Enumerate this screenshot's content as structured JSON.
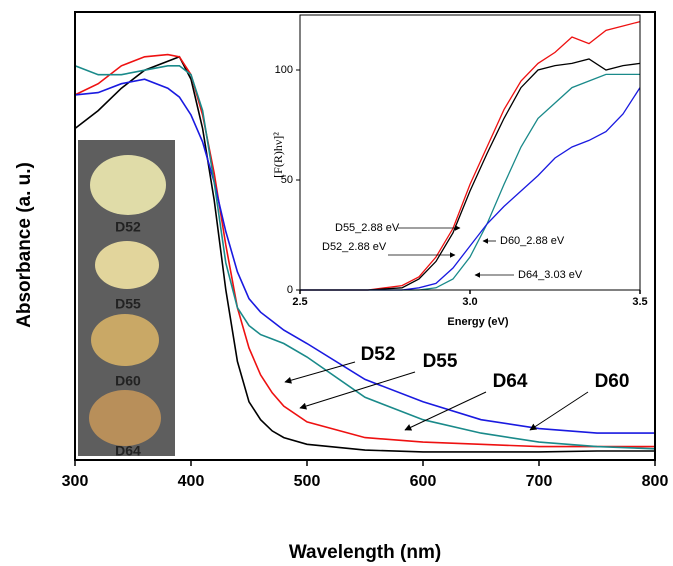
{
  "chart_data": [
    {
      "type": "line",
      "xlabel": "Wavelength (nm)",
      "ylabel": "Absorbance (a. u.)",
      "x": [
        300,
        320,
        340,
        360,
        380,
        390,
        400,
        410,
        420,
        430,
        440,
        450,
        460,
        470,
        480,
        500,
        550,
        600,
        650,
        700,
        750,
        800
      ],
      "xlim": [
        300,
        800
      ],
      "xticks": [
        300,
        400,
        500,
        600,
        700,
        800
      ],
      "ylim": [
        0,
        1
      ],
      "series": [
        {
          "name": "D52",
          "color": "#000000",
          "values": [
            0.74,
            0.78,
            0.83,
            0.87,
            0.89,
            0.9,
            0.85,
            0.74,
            0.58,
            0.38,
            0.22,
            0.13,
            0.09,
            0.065,
            0.05,
            0.035,
            0.022,
            0.018,
            0.018,
            0.018,
            0.02,
            0.02
          ]
        },
        {
          "name": "D55",
          "color": "#ee1111",
          "values": [
            0.815,
            0.84,
            0.88,
            0.9,
            0.905,
            0.9,
            0.86,
            0.77,
            0.64,
            0.48,
            0.34,
            0.25,
            0.19,
            0.15,
            0.12,
            0.085,
            0.05,
            0.04,
            0.035,
            0.03,
            0.03,
            0.03
          ]
        },
        {
          "name": "D60",
          "color": "#1a1ae0",
          "values": [
            0.815,
            0.82,
            0.84,
            0.85,
            0.83,
            0.81,
            0.77,
            0.71,
            0.62,
            0.51,
            0.42,
            0.36,
            0.33,
            0.31,
            0.29,
            0.26,
            0.18,
            0.13,
            0.09,
            0.07,
            0.06,
            0.06
          ]
        },
        {
          "name": "D64",
          "color": "#1a8a8a",
          "values": [
            0.88,
            0.86,
            0.86,
            0.87,
            0.88,
            0.88,
            0.86,
            0.78,
            0.62,
            0.44,
            0.34,
            0.3,
            0.28,
            0.27,
            0.26,
            0.23,
            0.14,
            0.09,
            0.06,
            0.04,
            0.03,
            0.025
          ]
        }
      ],
      "annotations": [
        "D52",
        "D55",
        "D64",
        "D60"
      ],
      "photo_labels": [
        "D52",
        "D55",
        "D60",
        "D64"
      ]
    },
    {
      "type": "line",
      "xlabel": "Energy (eV)",
      "ylabel": "[F(R)hν]²",
      "x": [
        2.5,
        2.6,
        2.7,
        2.8,
        2.85,
        2.9,
        2.95,
        3.0,
        3.05,
        3.1,
        3.15,
        3.2,
        3.25,
        3.3,
        3.35,
        3.4,
        3.45,
        3.5
      ],
      "xlim": [
        2.5,
        3.5
      ],
      "xticks": [
        2.5,
        {
          "value": 3,
          "label": "3.0"
        },
        3.5
      ],
      "ylim": [
        0,
        125
      ],
      "yticks": [
        0,
        50,
        100
      ],
      "series": [
        {
          "name": "D55",
          "color": "#ee1111",
          "values": [
            0,
            0,
            0,
            2,
            6,
            15,
            28,
            48,
            65,
            82,
            95,
            103,
            108,
            115,
            112,
            118,
            120,
            122
          ]
        },
        {
          "name": "D52",
          "color": "#000000",
          "values": [
            0,
            0,
            0,
            1,
            5,
            13,
            26,
            45,
            62,
            78,
            92,
            100,
            102,
            103,
            105,
            100,
            102,
            103
          ]
        },
        {
          "name": "D64",
          "color": "#1a8a8a",
          "values": [
            0,
            0,
            0,
            0,
            0,
            1,
            5,
            15,
            30,
            48,
            65,
            78,
            85,
            92,
            95,
            98,
            98,
            98
          ]
        },
        {
          "name": "D60",
          "color": "#1a1ae0",
          "values": [
            0,
            0,
            0,
            0,
            1,
            3,
            10,
            20,
            30,
            38,
            45,
            52,
            60,
            65,
            68,
            72,
            80,
            92
          ]
        }
      ],
      "annotations": [
        "D55_2.88 eV",
        "D52_2.88 eV",
        "D60_2.88 eV",
        "D64_3.03 eV"
      ]
    }
  ]
}
